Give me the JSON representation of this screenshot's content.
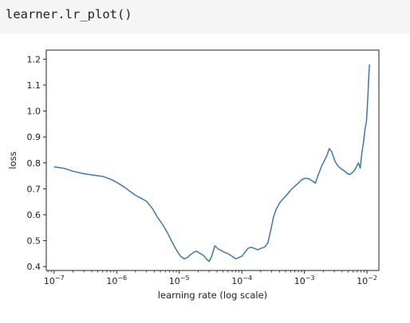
{
  "code_cell": {
    "source": "learner.lr_plot()"
  },
  "chart_data": {
    "type": "line",
    "xscale": "log",
    "xlabel": "learning rate (log scale)",
    "ylabel": "loss",
    "xlim": [
      7.5e-08,
      0.0155
    ],
    "ylim": [
      0.385,
      1.235
    ],
    "grid": false,
    "x_ticks": [
      {
        "value": 1e-07,
        "base": "10",
        "exp": "−7"
      },
      {
        "value": 1e-06,
        "base": "10",
        "exp": "−6"
      },
      {
        "value": 1e-05,
        "base": "10",
        "exp": "−5"
      },
      {
        "value": 0.0001,
        "base": "10",
        "exp": "−4"
      },
      {
        "value": 0.001,
        "base": "10",
        "exp": "−3"
      },
      {
        "value": 0.01,
        "base": "10",
        "exp": "−2"
      }
    ],
    "y_ticks": [
      {
        "value": 0.4,
        "label": "0.4"
      },
      {
        "value": 0.5,
        "label": "0.5"
      },
      {
        "value": 0.6,
        "label": "0.6"
      },
      {
        "value": 0.7,
        "label": "0.7"
      },
      {
        "value": 0.8,
        "label": "0.8"
      },
      {
        "value": 0.9,
        "label": "0.9"
      },
      {
        "value": 1.0,
        "label": "1.0"
      },
      {
        "value": 1.1,
        "label": "1.1"
      },
      {
        "value": 1.2,
        "label": "1.2"
      }
    ],
    "series": [
      {
        "color": "#3a7ab0",
        "x": [
          1e-07,
          1.2e-07,
          1.5e-07,
          2e-07,
          3e-07,
          4.5e-07,
          6e-07,
          8e-07,
          1e-06,
          1.3e-06,
          1.6e-06,
          2e-06,
          2.4e-06,
          3e-06,
          3.7e-06,
          4.5e-06,
          5.5e-06,
          6.5e-06,
          7.5e-06,
          8.5e-06,
          9.5e-06,
          1.05e-05,
          1.2e-05,
          1.35e-05,
          1.5e-05,
          1.7e-05,
          1.9e-05,
          2.1e-05,
          2.4e-05,
          2.7e-05,
          3e-05,
          3.3e-05,
          3.7e-05,
          4.2e-05,
          4.7e-05,
          5.3e-05,
          6e-05,
          7e-05,
          8e-05,
          9e-05,
          0.0001,
          0.000112,
          0.000125,
          0.00014,
          0.00016,
          0.00018,
          0.0002,
          0.00023,
          0.00026,
          0.00029,
          0.00032,
          0.00035,
          0.0004,
          0.00046,
          0.00053,
          0.0006,
          0.0007,
          0.0008,
          0.0009,
          0.001,
          0.00115,
          0.0013,
          0.0015,
          0.0017,
          0.0019,
          0.0021,
          0.0023,
          0.0025,
          0.0027,
          0.0029,
          0.0031,
          0.0034,
          0.0038,
          0.0043,
          0.0048,
          0.0053,
          0.0058,
          0.0063,
          0.0068,
          0.0073,
          0.0078,
          0.0083,
          0.0088,
          0.0093,
          0.0098,
          0.0103,
          0.0107,
          0.011
        ],
        "y": [
          0.785,
          0.782,
          0.778,
          0.768,
          0.758,
          0.752,
          0.748,
          0.737,
          0.725,
          0.708,
          0.692,
          0.675,
          0.665,
          0.652,
          0.625,
          0.59,
          0.56,
          0.53,
          0.5,
          0.475,
          0.455,
          0.44,
          0.43,
          0.435,
          0.445,
          0.455,
          0.46,
          0.452,
          0.445,
          0.43,
          0.42,
          0.44,
          0.48,
          0.468,
          0.462,
          0.455,
          0.45,
          0.44,
          0.43,
          0.435,
          0.44,
          0.455,
          0.47,
          0.475,
          0.47,
          0.465,
          0.47,
          0.475,
          0.49,
          0.54,
          0.59,
          0.618,
          0.645,
          0.662,
          0.678,
          0.695,
          0.71,
          0.722,
          0.735,
          0.74,
          0.74,
          0.732,
          0.722,
          0.76,
          0.79,
          0.81,
          0.83,
          0.855,
          0.845,
          0.825,
          0.805,
          0.79,
          0.778,
          0.77,
          0.76,
          0.755,
          0.762,
          0.77,
          0.785,
          0.8,
          0.78,
          0.84,
          0.88,
          0.93,
          0.96,
          1.05,
          1.14,
          1.18
        ]
      }
    ]
  }
}
